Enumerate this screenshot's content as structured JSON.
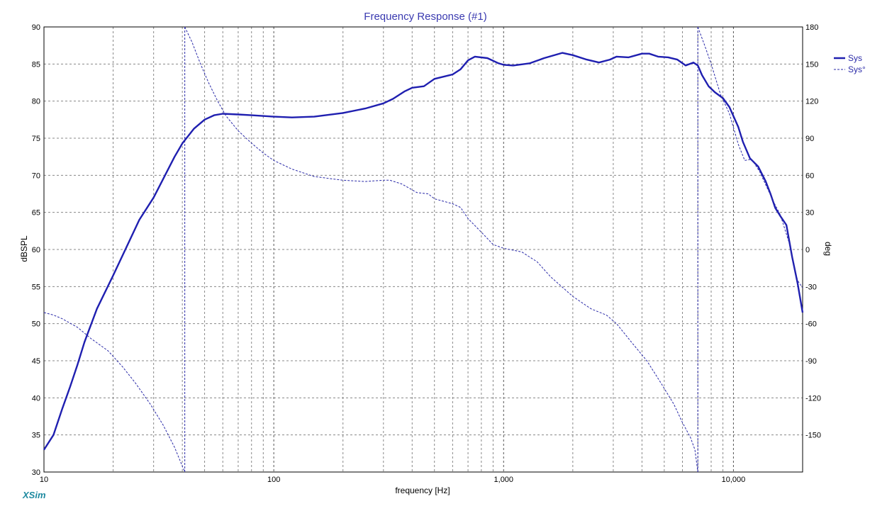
{
  "chart_data": {
    "type": "line",
    "title": "Frequency Response (#1)",
    "xlabel": "frequency [Hz]",
    "ylabel": "dBSPL",
    "y2label": "deg",
    "x_scale": "log",
    "xlim": [
      10,
      20000
    ],
    "ylim": [
      30,
      90
    ],
    "y2lim": [
      -180,
      180
    ],
    "x_tick_labels": [
      {
        "value": 10,
        "label": "10"
      },
      {
        "value": 100,
        "label": "100"
      },
      {
        "value": 1000,
        "label": "1,000"
      },
      {
        "value": 10000,
        "label": "10,000"
      }
    ],
    "y_ticks": [
      30,
      35,
      40,
      45,
      50,
      55,
      60,
      65,
      70,
      75,
      80,
      85,
      90
    ],
    "y2_ticks": [
      -150,
      -120,
      -90,
      -60,
      -30,
      0,
      30,
      60,
      90,
      120,
      150,
      180
    ],
    "grid": true,
    "legend_position": "right",
    "series": [
      {
        "name": "Sys",
        "style": "solid",
        "axis": "left",
        "color": "#1f1fb0",
        "points": [
          [
            10,
            33
          ],
          [
            11,
            35
          ],
          [
            12,
            38.5
          ],
          [
            13,
            41.5
          ],
          [
            14,
            44.5
          ],
          [
            15,
            47.5
          ],
          [
            17,
            52
          ],
          [
            20,
            56.5
          ],
          [
            23,
            60.5
          ],
          [
            26,
            64
          ],
          [
            30,
            67
          ],
          [
            33,
            69.5
          ],
          [
            37,
            72.5
          ],
          [
            40,
            74.3
          ],
          [
            45,
            76.3
          ],
          [
            50,
            77.5
          ],
          [
            55,
            78.1
          ],
          [
            60,
            78.3
          ],
          [
            70,
            78.2
          ],
          [
            80,
            78.1
          ],
          [
            100,
            77.9
          ],
          [
            120,
            77.8
          ],
          [
            150,
            77.9
          ],
          [
            200,
            78.4
          ],
          [
            250,
            79
          ],
          [
            300,
            79.7
          ],
          [
            330,
            80.3
          ],
          [
            370,
            81.3
          ],
          [
            400,
            81.8
          ],
          [
            450,
            82
          ],
          [
            500,
            83
          ],
          [
            600,
            83.6
          ],
          [
            650,
            84.3
          ],
          [
            700,
            85.5
          ],
          [
            750,
            86
          ],
          [
            850,
            85.8
          ],
          [
            950,
            85.1
          ],
          [
            1000,
            84.9
          ],
          [
            1100,
            84.8
          ],
          [
            1300,
            85.1
          ],
          [
            1500,
            85.8
          ],
          [
            1800,
            86.5
          ],
          [
            2000,
            86.2
          ],
          [
            2300,
            85.6
          ],
          [
            2600,
            85.2
          ],
          [
            2900,
            85.6
          ],
          [
            3100,
            86
          ],
          [
            3500,
            85.9
          ],
          [
            4000,
            86.4
          ],
          [
            4300,
            86.4
          ],
          [
            4700,
            86
          ],
          [
            5200,
            85.9
          ],
          [
            5700,
            85.6
          ],
          [
            6200,
            84.8
          ],
          [
            6700,
            85.2
          ],
          [
            7000,
            84.8
          ],
          [
            7300,
            83.5
          ],
          [
            7800,
            82
          ],
          [
            8300,
            81.2
          ],
          [
            9000,
            80.4
          ],
          [
            9600,
            79.2
          ],
          [
            10500,
            76.5
          ],
          [
            11000,
            74.5
          ],
          [
            11800,
            72.3
          ],
          [
            12800,
            71.2
          ],
          [
            13800,
            69.2
          ],
          [
            14500,
            67.5
          ],
          [
            15200,
            65.6
          ],
          [
            16000,
            64.5
          ],
          [
            17000,
            63.3
          ],
          [
            18000,
            59
          ],
          [
            19000,
            55.5
          ],
          [
            20000,
            51.5
          ]
        ]
      },
      {
        "name": "Sys°",
        "style": "dashed",
        "axis": "right",
        "color": "#2a2aa8",
        "points": [
          [
            10,
            -51
          ],
          [
            11,
            -53
          ],
          [
            12,
            -56
          ],
          [
            14,
            -63
          ],
          [
            16,
            -72
          ],
          [
            19,
            -82
          ],
          [
            22,
            -95
          ],
          [
            25,
            -108
          ],
          [
            29,
            -125
          ],
          [
            33,
            -142
          ],
          [
            37,
            -160
          ],
          [
            41,
            -180
          ],
          null,
          [
            41,
            180
          ],
          [
            44,
            168
          ],
          [
            48,
            150
          ],
          [
            52,
            135
          ],
          [
            57,
            120
          ],
          [
            62,
            108
          ],
          [
            70,
            96
          ],
          [
            80,
            86
          ],
          [
            90,
            78
          ],
          [
            100,
            72
          ],
          [
            120,
            65
          ],
          [
            150,
            59
          ],
          [
            200,
            56
          ],
          [
            250,
            55
          ],
          [
            300,
            56
          ],
          [
            320,
            56
          ],
          [
            360,
            53
          ],
          [
            420,
            46
          ],
          [
            470,
            45
          ],
          [
            500,
            41
          ],
          [
            600,
            37
          ],
          [
            650,
            34
          ],
          [
            700,
            25
          ],
          [
            800,
            14
          ],
          [
            900,
            4
          ],
          [
            1000,
            1
          ],
          [
            1200,
            -2
          ],
          [
            1400,
            -10
          ],
          [
            1600,
            -22
          ],
          [
            2000,
            -38
          ],
          [
            2400,
            -48
          ],
          [
            2800,
            -53
          ],
          [
            3100,
            -60
          ],
          [
            3600,
            -75
          ],
          [
            4200,
            -90
          ],
          [
            4800,
            -107
          ],
          [
            5500,
            -125
          ],
          [
            6000,
            -140
          ],
          [
            6500,
            -152
          ],
          [
            6800,
            -162
          ],
          [
            7000,
            -180
          ],
          null,
          [
            7000,
            180
          ],
          [
            7500,
            165
          ],
          [
            8000,
            150
          ],
          [
            8800,
            125
          ],
          [
            9600,
            110
          ],
          [
            10500,
            85
          ],
          [
            11200,
            72
          ],
          [
            12000,
            73
          ],
          [
            13000,
            63
          ],
          [
            14000,
            50
          ],
          [
            15000,
            38
          ],
          [
            16000,
            28
          ],
          [
            17500,
            5
          ],
          [
            19000,
            -25
          ],
          [
            20000,
            -31
          ]
        ]
      }
    ]
  },
  "brand": "XSim"
}
